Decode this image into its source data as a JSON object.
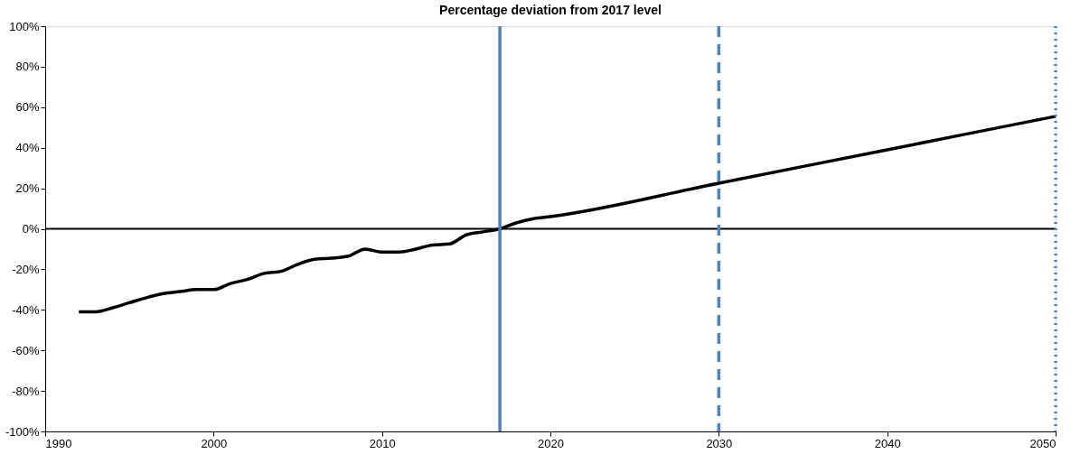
{
  "chart_data": {
    "type": "line",
    "title": "Percentage deviation from 2017 level",
    "x": [
      1992,
      1993,
      1994,
      1995,
      1996,
      1997,
      1998,
      1999,
      2000,
      2001,
      2002,
      2003,
      2004,
      2005,
      2006,
      2007,
      2008,
      2009,
      2010,
      2011,
      2012,
      2013,
      2014,
      2015,
      2016,
      2017,
      2018,
      2019,
      2020,
      2030,
      2040,
      2050
    ],
    "series": [
      {
        "color": "#000000",
        "values": [
          -41,
          -41,
          -39,
          -36.5,
          -34,
          -32,
          -31,
          -30,
          -30,
          -27,
          -25,
          -22,
          -21,
          -17.5,
          -15,
          -14.5,
          -13.5,
          -10,
          -11.5,
          -11.5,
          -10,
          -8,
          -7.5,
          -3,
          -1.5,
          0,
          3,
          5,
          6,
          22.5,
          39,
          55.5
        ]
      }
    ],
    "xlim": [
      1990,
      2050
    ],
    "xticks": [
      1990,
      2000,
      2010,
      2020,
      2030,
      2040,
      2050
    ],
    "ylim": [
      -100,
      100
    ],
    "yticks": [
      {
        "value": -100,
        "label": "-100%"
      },
      {
        "value": -80,
        "label": "-80%"
      },
      {
        "value": -60,
        "label": "-60%"
      },
      {
        "value": -40,
        "label": "-40%"
      },
      {
        "value": -20,
        "label": "-20%"
      },
      {
        "value": 0,
        "label": "0%"
      },
      {
        "value": 20,
        "label": "20%"
      },
      {
        "value": 40,
        "label": "40%"
      },
      {
        "value": 60,
        "label": "60%"
      },
      {
        "value": 80,
        "label": "80%"
      },
      {
        "value": 100,
        "label": "100%"
      }
    ],
    "ref_lines": [
      {
        "axis": "y",
        "value": 0,
        "color": "#000000",
        "line_style": "solid"
      },
      {
        "axis": "x",
        "value": 2017,
        "color": "#4f81bd",
        "line_style": "solid"
      },
      {
        "axis": "x",
        "value": 2030,
        "color": "#4f81bd",
        "line_style": "dashed"
      },
      {
        "axis": "x",
        "value": 2050,
        "color": "#4f81bd",
        "line_style": "dotted"
      }
    ],
    "marker": "none",
    "line_style": "solid"
  }
}
